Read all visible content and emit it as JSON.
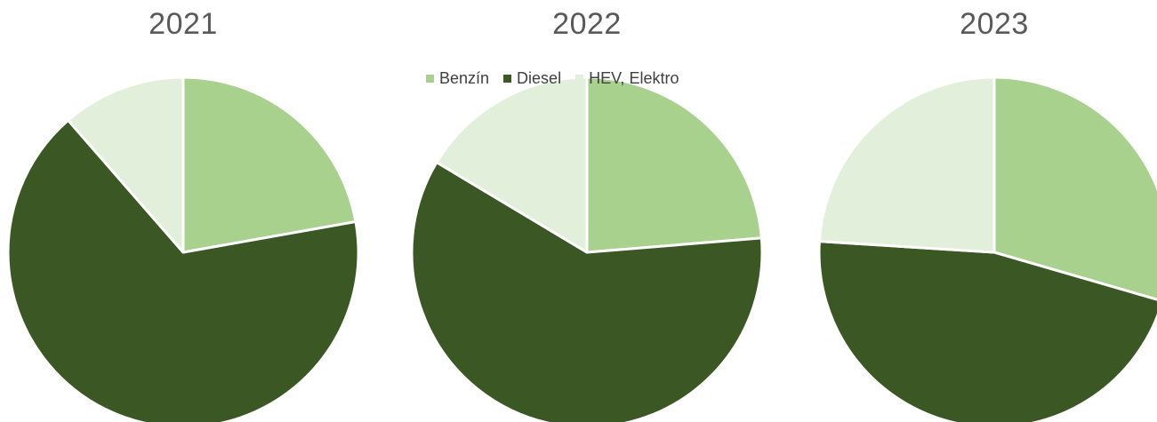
{
  "chart_data": {
    "type": "pie",
    "legend": {
      "position": "top",
      "entries": [
        "Benzín",
        "Diesel",
        "HEV, Elektro"
      ]
    },
    "colors": [
      "#a9d18e",
      "#3b5724",
      "#e2efda"
    ],
    "charts": [
      {
        "title": "2021",
        "slices": [
          {
            "label": "Benzín",
            "value": 22.2
          },
          {
            "label": "Diesel",
            "value": 66.4
          },
          {
            "label": "HEV, Elektro",
            "value": 11.4
          }
        ]
      },
      {
        "title": "2022",
        "slices": [
          {
            "label": "Benzín",
            "value": 23.7
          },
          {
            "label": "Diesel",
            "value": 59.9
          },
          {
            "label": "HEV, Elektro",
            "value": 16.4
          }
        ]
      },
      {
        "title": "2023",
        "slices": [
          {
            "label": "Benzín",
            "value": 29.5
          },
          {
            "label": "Diesel",
            "value": 46.5
          },
          {
            "label": "HEV, Elektro",
            "value": 24.0
          }
        ]
      }
    ]
  }
}
